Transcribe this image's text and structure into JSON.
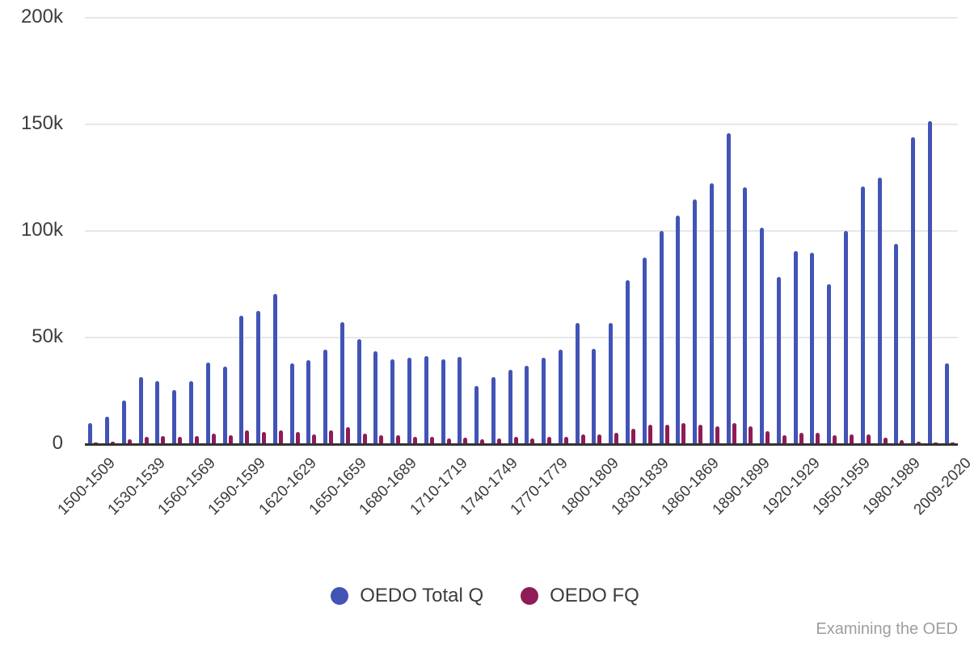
{
  "page": {
    "watermark": "Examining the OED"
  },
  "legend": {
    "items": [
      {
        "label": "OEDO Total Q",
        "color": "#4254b5"
      },
      {
        "label": "OEDO FQ",
        "color": "#8e1c56"
      }
    ]
  },
  "colors": {
    "total_q_bar": "#4254b5",
    "fq_bar": "#8e1c56",
    "axis_line": "#333333",
    "gridline": "#e7e7e7",
    "tick_text": "#3d3d3d",
    "watermark_text": "#9e9e9e",
    "background": "#ffffff"
  },
  "chart_data": {
    "type": "bar",
    "title": "",
    "xlabel": "",
    "ylabel": "",
    "ylim": [
      0,
      200000
    ],
    "grid": "horizontal",
    "legend_position": "bottom",
    "x_tick_every": 3,
    "y_ticks": [
      {
        "value": 0,
        "label": "0"
      },
      {
        "value": 50000,
        "label": "50k"
      },
      {
        "value": 100000,
        "label": "100k"
      },
      {
        "value": 150000,
        "label": "150k"
      },
      {
        "value": 200000,
        "label": "200k"
      }
    ],
    "categories": [
      "1500-1509",
      "1510-1519",
      "1520-1529",
      "1530-1539",
      "1540-1549",
      "1550-1559",
      "1560-1569",
      "1570-1579",
      "1580-1589",
      "1590-1599",
      "1600-1609",
      "1610-1619",
      "1620-1629",
      "1630-1639",
      "1640-1649",
      "1650-1659",
      "1660-1669",
      "1670-1679",
      "1680-1689",
      "1690-1699",
      "1700-1709",
      "1710-1719",
      "1720-1729",
      "1730-1739",
      "1740-1749",
      "1750-1759",
      "1760-1769",
      "1770-1779",
      "1780-1789",
      "1790-1799",
      "1800-1809",
      "1810-1819",
      "1820-1829",
      "1830-1839",
      "1840-1849",
      "1850-1859",
      "1860-1869",
      "1870-1879",
      "1880-1889",
      "1890-1899",
      "1900-1909",
      "1910-1919",
      "1920-1929",
      "1930-1939",
      "1940-1949",
      "1950-1959",
      "1960-1969",
      "1970-1979",
      "1980-1989",
      "1990-1999",
      "2000-2008",
      "2009-2020"
    ],
    "series": [
      {
        "name": "OEDO Total Q",
        "color": "#4254b5",
        "values": [
          9500,
          12500,
          20000,
          31000,
          29000,
          25000,
          29000,
          38000,
          36000,
          60000,
          62000,
          70000,
          37500,
          39000,
          44000,
          57000,
          49000,
          43000,
          39500,
          40000,
          41000,
          39500,
          40500,
          27000,
          31000,
          34500,
          36500,
          40000,
          44000,
          56500,
          44500,
          56500,
          76500,
          87000,
          99500,
          107000,
          114500,
          122000,
          145500,
          120000,
          101000,
          78000,
          90000,
          89500,
          74500,
          99500,
          120500,
          124500,
          93500,
          143500,
          151000,
          37500
        ]
      },
      {
        "name": "OEDO FQ",
        "color": "#8e1c56",
        "values": [
          400,
          700,
          2000,
          3000,
          3400,
          3000,
          3400,
          4600,
          3800,
          6100,
          5300,
          6100,
          5300,
          4200,
          6200,
          7700,
          4500,
          3800,
          3700,
          3200,
          3000,
          2300,
          2800,
          1900,
          2400,
          3200,
          2400,
          3000,
          3200,
          4300,
          4000,
          5000,
          7000,
          8800,
          8700,
          9500,
          8800,
          8000,
          9500,
          7800,
          5500,
          3900,
          4900,
          4800,
          3900,
          4100,
          4100,
          2600,
          1500,
          800,
          300,
          200
        ]
      }
    ]
  }
}
